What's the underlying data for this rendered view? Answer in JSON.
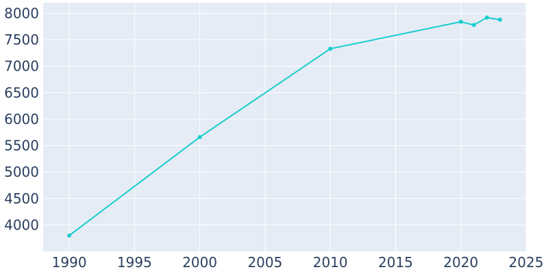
{
  "chart_data": {
    "type": "line",
    "title": "",
    "xlabel": "",
    "ylabel": "",
    "xlim": [
      1988,
      2025
    ],
    "ylim": [
      3500,
      8200
    ],
    "x_ticks": [
      1990,
      1995,
      2000,
      2005,
      2010,
      2015,
      2020,
      2025
    ],
    "y_ticks": [
      4000,
      4500,
      5000,
      5500,
      6000,
      6500,
      7000,
      7500,
      8000
    ],
    "grid": true,
    "legend": "none",
    "series": [
      {
        "color": "#17cdcd",
        "x": [
          1990,
          2000,
          2010,
          2020,
          2021,
          2022,
          2023
        ],
        "values": [
          3800,
          5660,
          7330,
          7840,
          7780,
          7920,
          7880
        ]
      }
    ]
  },
  "colors": {
    "plot_background": "#e5ecf6",
    "grid": "#ffffff",
    "tick_text": "#2a3f5f",
    "line": "#17cdcd"
  }
}
